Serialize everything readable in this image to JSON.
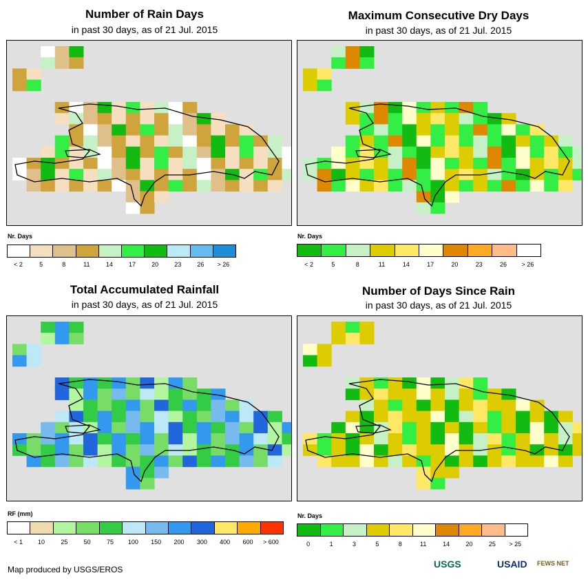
{
  "panels": [
    {
      "id": "rain-days",
      "title": "Number of Rain Days",
      "subtitle": "in past 30 days, as of 21 Jul. 2015",
      "legend_title": "Nr. Days",
      "legend_colors": [
        "#ffffff",
        "#f5dfc0",
        "#e0c08a",
        "#cfa43c",
        "#c6f0c6",
        "#33ee44",
        "#11bb11",
        "#bde8f5",
        "#66bbee",
        "#1f8ed6"
      ],
      "legend_labels": [
        "< 2",
        "5",
        "8",
        "11",
        "14",
        "17",
        "20",
        "23",
        "26",
        "> 26"
      ]
    },
    {
      "id": "max-dry-days",
      "title": "Maximum Consecutive Dry Days",
      "subtitle": "in past 30 days, as of 21 Jul. 2015",
      "legend_title": "Nr. Days",
      "legend_colors": [
        "#11bb11",
        "#33ee44",
        "#c6f0c6",
        "#ddcc00",
        "#ffe866",
        "#ffffcc",
        "#dd8800",
        "#ffaa22",
        "#ffbb88",
        "#ffffff"
      ],
      "legend_labels": [
        "< 2",
        "5",
        "8",
        "11",
        "14",
        "17",
        "20",
        "23",
        "26",
        "> 26"
      ]
    },
    {
      "id": "total-rainfall",
      "title": "Total Accumulated Rainfall",
      "subtitle": "in past 30 days, as of 21 Jul. 2015",
      "legend_title": "RF (mm)",
      "legend_colors": [
        "#ffffff",
        "#efdcae",
        "#b4f5a0",
        "#77dd66",
        "#33cc44",
        "#bde8f5",
        "#77bbee",
        "#3399ee",
        "#2266dd",
        "#ffe866",
        "#ffaa00",
        "#ff3300"
      ],
      "legend_labels": [
        "< 1",
        "10",
        "25",
        "50",
        "75",
        "100",
        "150",
        "200",
        "300",
        "400",
        "600",
        "> 600"
      ]
    },
    {
      "id": "days-since-rain",
      "title": "Number of Days Since Rain",
      "subtitle": "in past 30 days, as of 21 Jul. 2015",
      "legend_title": "Nr. Days",
      "legend_colors": [
        "#11bb11",
        "#33ee44",
        "#c6f0c6",
        "#ddcc00",
        "#ffe866",
        "#ffffcc",
        "#dd8800",
        "#ffaa22",
        "#ffbb88",
        "#ffffff"
      ],
      "legend_labels": [
        "0",
        "1",
        "3",
        "5",
        "8",
        "11",
        "14",
        "20",
        "25",
        "> 25"
      ]
    }
  ],
  "footer": {
    "credit": "Map produced by USGS/EROS",
    "logos": [
      "USGS",
      "USAID",
      "FEWS NET"
    ]
  }
}
